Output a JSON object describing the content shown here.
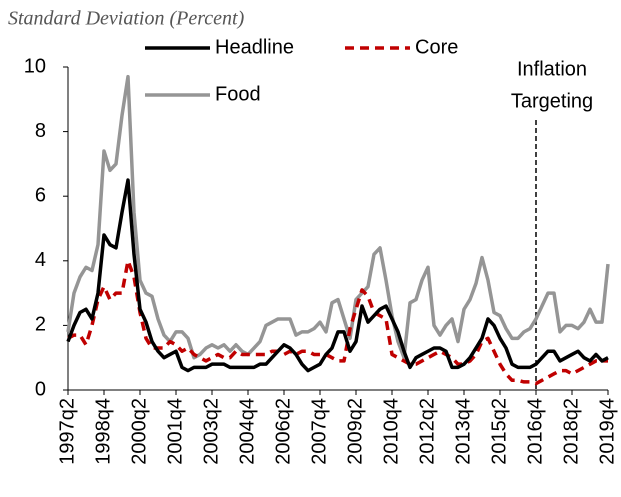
{
  "chart_data": {
    "type": "line",
    "subtitle": "Standard Deviation (Percent)",
    "categories": [
      "1997q2",
      null,
      null,
      null,
      null,
      null,
      "1998q4",
      null,
      null,
      null,
      null,
      null,
      "2000q2",
      null,
      null,
      null,
      null,
      null,
      "2001q4",
      null,
      null,
      null,
      null,
      null,
      "2003q2",
      null,
      null,
      null,
      null,
      null,
      "2004q4",
      null,
      null,
      null,
      null,
      null,
      "2006q2",
      null,
      null,
      null,
      null,
      null,
      "2007q4",
      null,
      null,
      null,
      null,
      null,
      "2009q2",
      null,
      null,
      null,
      null,
      null,
      "2010q4",
      null,
      null,
      null,
      null,
      null,
      "2012q2",
      null,
      null,
      null,
      null,
      null,
      "2013q4",
      null,
      null,
      null,
      null,
      null,
      "2015q2",
      null,
      null,
      null,
      null,
      null,
      "2016q4",
      null,
      null,
      null,
      null,
      null,
      "2018q2",
      null,
      null,
      null,
      null,
      null,
      "2019q4"
    ],
    "series": [
      {
        "name": "Headline",
        "color": "#000000",
        "line_style": "solid",
        "values": [
          1.5,
          2.0,
          2.4,
          2.5,
          2.2,
          3.0,
          4.8,
          4.5,
          4.4,
          5.5,
          6.5,
          4.2,
          2.5,
          2.1,
          1.5,
          1.2,
          1.0,
          1.1,
          1.2,
          0.7,
          0.6,
          0.7,
          0.7,
          0.7,
          0.8,
          0.8,
          0.8,
          0.7,
          0.7,
          0.7,
          0.7,
          0.7,
          0.8,
          0.8,
          1.0,
          1.2,
          1.4,
          1.3,
          1.1,
          0.8,
          0.6,
          0.7,
          0.8,
          1.1,
          1.3,
          1.8,
          1.8,
          1.2,
          1.5,
          2.6,
          2.1,
          2.3,
          2.5,
          2.6,
          2.2,
          1.8,
          1.2,
          0.7,
          1.0,
          1.1,
          1.2,
          1.3,
          1.3,
          1.2,
          0.7,
          0.7,
          0.8,
          1.0,
          1.3,
          1.6,
          2.2,
          2.0,
          1.6,
          1.3,
          0.8,
          0.7,
          0.7,
          0.7,
          0.8,
          1.0,
          1.2,
          1.2,
          0.9,
          1.0,
          1.1,
          1.2,
          1.0,
          0.9,
          1.1,
          0.9,
          1.0
        ]
      },
      {
        "name": "Core",
        "color": "#c00000",
        "line_style": "dashed",
        "values": [
          1.6,
          1.7,
          1.7,
          1.4,
          2.0,
          2.8,
          3.2,
          2.8,
          3.0,
          3.0,
          4.0,
          3.5,
          2.4,
          1.6,
          1.3,
          1.3,
          1.3,
          1.5,
          1.4,
          1.2,
          1.3,
          1.1,
          1.0,
          0.9,
          1.0,
          1.1,
          1.0,
          1.0,
          1.2,
          1.1,
          1.1,
          1.1,
          1.1,
          1.1,
          1.2,
          1.2,
          1.1,
          1.2,
          1.1,
          1.2,
          1.2,
          1.1,
          1.1,
          1.1,
          1.0,
          0.9,
          0.9,
          1.9,
          2.5,
          3.1,
          2.9,
          2.4,
          2.3,
          2.2,
          1.1,
          1.0,
          0.9,
          0.8,
          0.8,
          0.9,
          1.0,
          1.1,
          1.2,
          1.1,
          1.0,
          0.8,
          0.8,
          0.9,
          1.1,
          1.5,
          1.6,
          1.2,
          0.8,
          0.5,
          0.3,
          0.3,
          0.25,
          0.25,
          0.2,
          0.3,
          0.4,
          0.5,
          0.6,
          0.6,
          0.5,
          0.6,
          0.7,
          0.8,
          0.9,
          0.9,
          0.9
        ]
      },
      {
        "name": "Food",
        "color": "#959595",
        "line_style": "solid",
        "values": [
          1.8,
          3.0,
          3.5,
          3.8,
          3.7,
          4.5,
          7.4,
          6.8,
          7.0,
          8.5,
          9.7,
          5.5,
          3.4,
          3.0,
          2.9,
          2.2,
          1.7,
          1.5,
          1.8,
          1.8,
          1.6,
          1.0,
          1.1,
          1.3,
          1.4,
          1.3,
          1.4,
          1.2,
          1.4,
          1.2,
          1.1,
          1.3,
          1.5,
          2.0,
          2.1,
          2.2,
          2.2,
          2.2,
          1.7,
          1.8,
          1.8,
          1.9,
          2.1,
          1.8,
          2.7,
          2.8,
          2.2,
          1.6,
          2.8,
          3.0,
          3.2,
          4.2,
          4.4,
          3.4,
          2.3,
          1.5,
          1.0,
          2.7,
          2.8,
          3.4,
          3.8,
          2.0,
          1.7,
          2.0,
          2.2,
          1.5,
          2.5,
          2.8,
          3.3,
          4.1,
          3.4,
          2.4,
          2.3,
          1.9,
          1.6,
          1.6,
          1.8,
          1.9,
          2.2,
          2.6,
          3.0,
          3.0,
          1.8,
          2.0,
          2.0,
          1.9,
          2.1,
          2.5,
          2.1,
          2.1,
          3.9
        ]
      }
    ],
    "ylim": [
      0,
      10
    ],
    "yticks": [
      0,
      2,
      4,
      6,
      8,
      10
    ],
    "grid": false,
    "annotations": [
      {
        "lines": [
          "Inflation",
          "Targeting"
        ],
        "x": "2016q4",
        "line_style": "dashed"
      }
    ]
  }
}
